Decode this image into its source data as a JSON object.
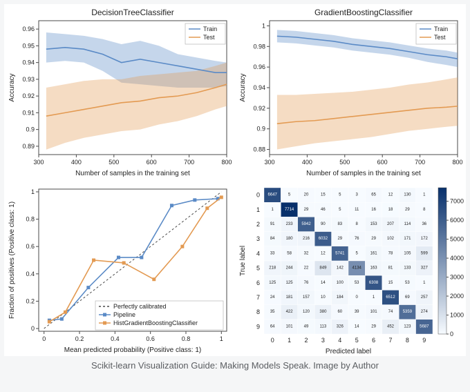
{
  "caption": "Scikit-learn Visualization Guide: Making Models Speak. Image by Author",
  "panel_a": {
    "type": "line",
    "title": "DecisionTreeClassifier",
    "xlabel": "Number of samples in the training set",
    "ylabel": "Accuracy",
    "xlim": [
      300,
      800
    ],
    "xticks": [
      300,
      400,
      500,
      600,
      700,
      800
    ],
    "ylim": [
      0.885,
      0.965
    ],
    "yticks": [
      0.89,
      0.9,
      0.91,
      0.92,
      0.93,
      0.94,
      0.95,
      0.96
    ],
    "background_color": "#ffffff",
    "border_color": "#4a4a4a",
    "series": [
      {
        "name": "Train",
        "color": "#5a8ac6",
        "fill_opacity": 0.35,
        "line_width": 1.6,
        "x": [
          320,
          370,
          420,
          470,
          520,
          570,
          620,
          670,
          720,
          770,
          800
        ],
        "y": [
          0.948,
          0.949,
          0.948,
          0.945,
          0.94,
          0.942,
          0.94,
          0.938,
          0.936,
          0.934,
          0.934
        ],
        "lo": [
          0.94,
          0.941,
          0.94,
          0.935,
          0.928,
          0.927,
          0.926,
          0.925,
          0.925,
          0.925,
          0.926
        ],
        "hi": [
          0.958,
          0.957,
          0.956,
          0.954,
          0.951,
          0.953,
          0.95,
          0.945,
          0.943,
          0.941,
          0.94
        ]
      },
      {
        "name": "Test",
        "color": "#e39a52",
        "fill_opacity": 0.35,
        "line_width": 1.6,
        "x": [
          320,
          370,
          420,
          470,
          520,
          570,
          620,
          670,
          720,
          770,
          800
        ],
        "y": [
          0.908,
          0.91,
          0.912,
          0.914,
          0.916,
          0.917,
          0.919,
          0.92,
          0.922,
          0.925,
          0.927
        ],
        "lo": [
          0.888,
          0.892,
          0.895,
          0.897,
          0.899,
          0.9,
          0.903,
          0.905,
          0.908,
          0.912,
          0.914
        ],
        "hi": [
          0.925,
          0.927,
          0.929,
          0.93,
          0.93,
          0.932,
          0.933,
          0.934,
          0.935,
          0.938,
          0.94
        ]
      }
    ],
    "legend": [
      "Train",
      "Test"
    ]
  },
  "panel_b": {
    "type": "line",
    "title": "GradientBoostingClassifier",
    "xlabel": "Number of samples in the training set",
    "ylabel": "Accuracy",
    "xlim": [
      300,
      800
    ],
    "xticks": [
      300,
      400,
      500,
      600,
      700,
      800
    ],
    "ylim": [
      0.875,
      1.005
    ],
    "yticks": [
      0.88,
      0.9,
      0.92,
      0.94,
      0.96,
      0.98,
      1.0
    ],
    "background_color": "#ffffff",
    "border_color": "#4a4a4a",
    "series": [
      {
        "name": "Train",
        "color": "#5a8ac6",
        "fill_opacity": 0.35,
        "line_width": 1.6,
        "x": [
          320,
          370,
          420,
          470,
          520,
          570,
          620,
          670,
          720,
          770,
          800
        ],
        "y": [
          0.99,
          0.989,
          0.987,
          0.985,
          0.982,
          0.98,
          0.978,
          0.975,
          0.972,
          0.97,
          0.968
        ],
        "lo": [
          0.984,
          0.983,
          0.981,
          0.979,
          0.976,
          0.974,
          0.972,
          0.969,
          0.965,
          0.962,
          0.96
        ],
        "hi": [
          0.996,
          0.995,
          0.993,
          0.991,
          0.988,
          0.986,
          0.984,
          0.981,
          0.978,
          0.976,
          0.974
        ]
      },
      {
        "name": "Test",
        "color": "#e39a52",
        "fill_opacity": 0.35,
        "line_width": 1.6,
        "x": [
          320,
          370,
          420,
          470,
          520,
          570,
          620,
          670,
          720,
          770,
          800
        ],
        "y": [
          0.905,
          0.907,
          0.908,
          0.91,
          0.912,
          0.914,
          0.916,
          0.918,
          0.92,
          0.921,
          0.922
        ],
        "lo": [
          0.88,
          0.883,
          0.886,
          0.888,
          0.89,
          0.892,
          0.895,
          0.898,
          0.9,
          0.902,
          0.903
        ],
        "hi": [
          0.933,
          0.933,
          0.934,
          0.935,
          0.936,
          0.938,
          0.94,
          0.943,
          0.945,
          0.948,
          0.95
        ]
      }
    ],
    "legend": [
      "Train",
      "Test"
    ]
  },
  "panel_c": {
    "type": "line",
    "xlabel": "Mean predicted probability (Positive class: 1)",
    "ylabel": "Fraction of positives (Positive class: 1)",
    "xlim": [
      -0.03,
      1.03
    ],
    "xticks": [
      0.0,
      0.2,
      0.4,
      0.6,
      0.8,
      1.0
    ],
    "ylim": [
      -0.02,
      1.02
    ],
    "yticks": [
      0.0,
      0.2,
      0.4,
      0.6,
      0.8,
      1.0
    ],
    "background_color": "#ffffff",
    "border_color": "#4a4a4a",
    "diagonal": {
      "color": "#4a4a4a",
      "dash": "3,3",
      "label": "Perfectly calibrated"
    },
    "series": [
      {
        "name": "Pipeline",
        "color": "#5a8ac6",
        "marker": "square",
        "marker_size": 4,
        "line_width": 1.6,
        "x": [
          0.03,
          0.1,
          0.25,
          0.42,
          0.55,
          0.72,
          0.85,
          0.98
        ],
        "y": [
          0.06,
          0.07,
          0.3,
          0.52,
          0.52,
          0.9,
          0.94,
          0.95
        ]
      },
      {
        "name": "HistGradientBoostingClassifier",
        "color": "#e39a52",
        "marker": "square",
        "marker_size": 4,
        "line_width": 1.6,
        "x": [
          0.03,
          0.12,
          0.28,
          0.45,
          0.62,
          0.78,
          0.92,
          1.0
        ],
        "y": [
          0.05,
          0.12,
          0.5,
          0.48,
          0.36,
          0.6,
          0.88,
          0.96
        ]
      }
    ],
    "legend": [
      "Perfectly calibrated",
      "Pipeline",
      "HistGradientBoostingClassifier"
    ]
  },
  "panel_d": {
    "type": "heatmap",
    "xlabel": "Predicted label",
    "ylabel": "True label",
    "classes": [
      "0",
      "1",
      "2",
      "3",
      "4",
      "5",
      "6",
      "7",
      "8",
      "9"
    ],
    "colorbar_ticks": [
      0,
      1000,
      2000,
      3000,
      4000,
      5000,
      6000,
      7000
    ],
    "cmap_low": "#f7fbff",
    "cmap_high": "#08306b",
    "vmin": 0,
    "vmax": 7714,
    "matrix": [
      [
        6647,
        5,
        20,
        15,
        5,
        3,
        65,
        12,
        130,
        1
      ],
      [
        1,
        7714,
        29,
        46,
        5,
        11,
        16,
        18,
        29,
        8
      ],
      [
        91,
        233,
        5942,
        90,
        83,
        8,
        153,
        207,
        114,
        36
      ],
      [
        84,
        180,
        216,
        6032,
        29,
        76,
        29,
        102,
        171,
        172
      ],
      [
        33,
        58,
        32,
        12,
        5741,
        5,
        161,
        78,
        105,
        599
      ],
      [
        218,
        244,
        22,
        849,
        142,
        4134,
        163,
        81,
        133,
        327
      ],
      [
        125,
        125,
        76,
        14,
        100,
        53,
        6308,
        15,
        53,
        1
      ],
      [
        24,
        181,
        157,
        10,
        184,
        0,
        1,
        6512,
        69,
        257
      ],
      [
        35,
        422,
        120,
        380,
        60,
        39,
        101,
        74,
        5359,
        274
      ],
      [
        64,
        101,
        49,
        113,
        326,
        14,
        29,
        452,
        123,
        5687
      ]
    ]
  }
}
